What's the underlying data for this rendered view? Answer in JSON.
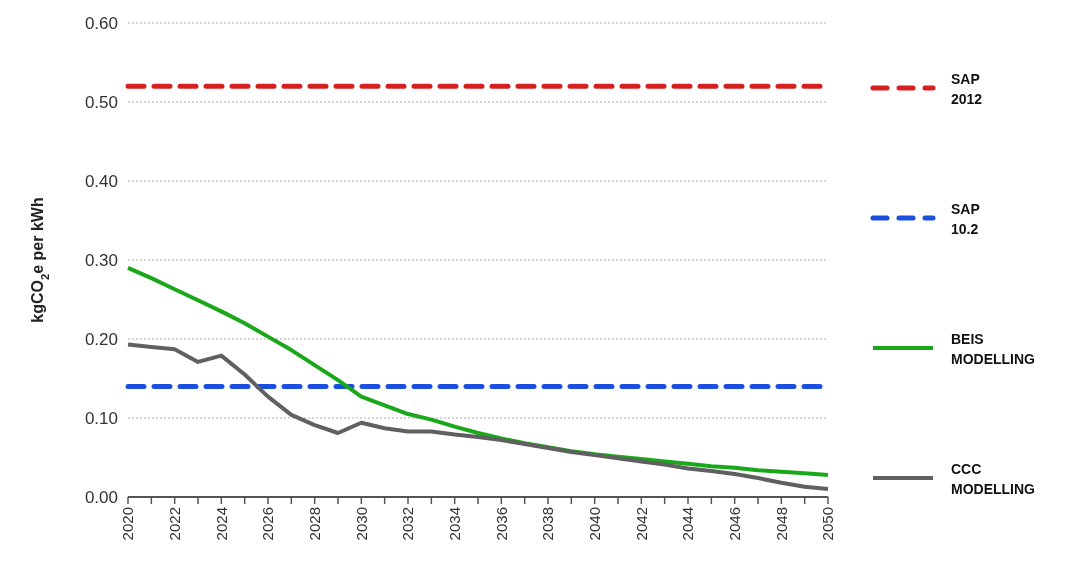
{
  "chart_data": {
    "type": "line",
    "ylabel": "kgCO$_{2}$e per kWh",
    "x": [
      2020,
      2021,
      2022,
      2023,
      2024,
      2025,
      2026,
      2027,
      2028,
      2029,
      2030,
      2031,
      2032,
      2033,
      2034,
      2035,
      2036,
      2037,
      2038,
      2039,
      2040,
      2041,
      2042,
      2043,
      2044,
      2045,
      2046,
      2047,
      2048,
      2049,
      2050
    ],
    "series": [
      {
        "name": "SAP 2012",
        "color": "#d62020",
        "line_style": "dashed",
        "values": [
          0.52,
          0.52,
          0.52,
          0.52,
          0.52,
          0.52,
          0.52,
          0.52,
          0.52,
          0.52,
          0.52,
          0.52,
          0.52,
          0.52,
          0.52,
          0.52,
          0.52,
          0.52,
          0.52,
          0.52,
          0.52,
          0.52,
          0.52,
          0.52,
          0.52,
          0.52,
          0.52,
          0.52,
          0.52,
          0.52,
          0.52
        ]
      },
      {
        "name": "SAP 10.2",
        "color": "#1a4fe0",
        "line_style": "dashed",
        "values": [
          0.14,
          0.14,
          0.14,
          0.14,
          0.14,
          0.14,
          0.14,
          0.14,
          0.14,
          0.14,
          0.14,
          0.14,
          0.14,
          0.14,
          0.14,
          0.14,
          0.14,
          0.14,
          0.14,
          0.14,
          0.14,
          0.14,
          0.14,
          0.14,
          0.14,
          0.14,
          0.14,
          0.14,
          0.14,
          0.14,
          0.14
        ]
      },
      {
        "name": "BEIS MODELLING",
        "color": "#1aa81a",
        "line_style": "solid",
        "values": [
          0.29,
          0.277,
          0.263,
          0.249,
          0.235,
          0.22,
          0.203,
          0.186,
          0.167,
          0.148,
          0.127,
          0.116,
          0.105,
          0.098,
          0.089,
          0.081,
          0.074,
          0.068,
          0.063,
          0.058,
          0.054,
          0.051,
          0.048,
          0.045,
          0.042,
          0.039,
          0.037,
          0.034,
          0.032,
          0.03,
          0.028
        ]
      },
      {
        "name": "CCC MODELLING",
        "color": "#606060",
        "line_style": "solid",
        "values": [
          0.193,
          0.19,
          0.187,
          0.171,
          0.179,
          0.155,
          0.127,
          0.104,
          0.091,
          0.081,
          0.094,
          0.087,
          0.083,
          0.083,
          0.079,
          0.076,
          0.072,
          0.067,
          0.062,
          0.057,
          0.053,
          0.049,
          0.045,
          0.041,
          0.036,
          0.033,
          0.029,
          0.024,
          0.018,
          0.013,
          0.01
        ]
      }
    ],
    "xlim": [
      2020,
      2050
    ],
    "xticks": [
      2020,
      {
        "value": 2021,
        "label": null
      },
      2022,
      {
        "value": 2023,
        "label": null
      },
      2024,
      {
        "value": 2025,
        "label": null
      },
      2026,
      {
        "value": 2027,
        "label": null
      },
      2028,
      {
        "value": 2029,
        "label": null
      },
      2030,
      {
        "value": 2031,
        "label": null
      },
      2032,
      {
        "value": 2033,
        "label": null
      },
      2034,
      {
        "value": 2035,
        "label": null
      },
      2036,
      {
        "value": 2037,
        "label": null
      },
      2038,
      {
        "value": 2039,
        "label": null
      },
      2040,
      {
        "value": 2041,
        "label": null
      },
      2042,
      {
        "value": 2043,
        "label": null
      },
      2044,
      {
        "value": 2045,
        "label": null
      },
      2046,
      {
        "value": 2047,
        "label": null
      },
      2048,
      {
        "value": 2049,
        "label": null
      },
      2050
    ],
    "ylim": [
      0,
      0.6
    ],
    "yticks": [
      {
        "value": 0,
        "label": "0.00"
      },
      {
        "value": 0.1,
        "label": "0.10"
      },
      {
        "value": 0.2,
        "label": "0.20"
      },
      {
        "value": 0.3,
        "label": "0.30"
      },
      {
        "value": 0.4,
        "label": "0.40"
      },
      {
        "value": 0.5,
        "label": "0.50"
      },
      {
        "value": 0.6,
        "label": "0.60"
      }
    ],
    "grid": "y",
    "legend": "right"
  }
}
